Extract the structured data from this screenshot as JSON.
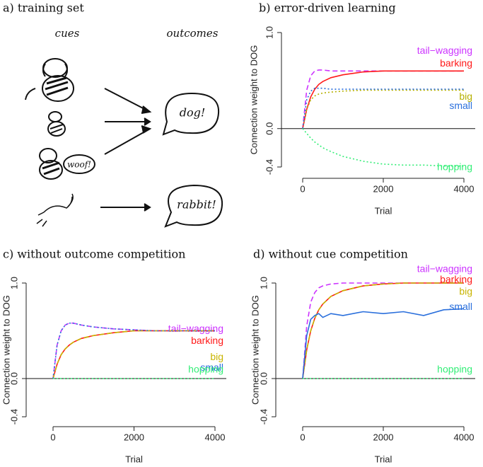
{
  "diagram": {
    "title": "a) training set",
    "cues_label": "cues",
    "outcomes_label": "outcomes",
    "bark_bubble": "woof!",
    "outcome_dog": "dog!",
    "outcome_rabbit": "rabbit!"
  },
  "chart_data": [
    {
      "type": "line",
      "title": "b) error-driven learning",
      "xlabel": "Trial",
      "ylabel": "Connection weight to DOG",
      "x": [
        0,
        100,
        200,
        300,
        400,
        500,
        700,
        1000,
        1500,
        2000,
        2500,
        3000,
        3500,
        4000
      ],
      "xlim": [
        0,
        4000
      ],
      "xticks": [
        0,
        2000,
        4000
      ],
      "ylim": [
        -0.4,
        1.0
      ],
      "yticks": [
        -0.4,
        {
          "value": 0,
          "label": "0.0"
        },
        {
          "value": 1,
          "label": "1.0"
        }
      ],
      "series": [
        {
          "name": "tail−wagging",
          "color": "#cc33ff",
          "line_style": "dashed",
          "values": [
            0,
            0.4,
            0.55,
            0.6,
            0.61,
            0.61,
            0.6,
            0.6,
            0.6,
            0.6,
            0.6,
            0.6,
            0.6,
            0.6
          ]
        },
        {
          "name": "barking",
          "color": "#ff1a1a",
          "line_style": "solid",
          "values": [
            0,
            0.2,
            0.33,
            0.41,
            0.46,
            0.49,
            0.53,
            0.56,
            0.59,
            0.6,
            0.6,
            0.6,
            0.6,
            0.6
          ]
        },
        {
          "name": "big",
          "color": "#b5b000",
          "line_style": "dotted",
          "values": [
            0,
            0.2,
            0.3,
            0.34,
            0.36,
            0.37,
            0.38,
            0.39,
            0.4,
            0.4,
            0.4,
            0.4,
            0.4,
            0.4
          ]
        },
        {
          "name": "small",
          "color": "#2a6fdc",
          "line_style": "dotted",
          "values": [
            0,
            0.3,
            0.39,
            0.42,
            0.42,
            0.42,
            0.41,
            0.41,
            0.41,
            0.41,
            0.41,
            0.41,
            0.41,
            0.41
          ]
        },
        {
          "name": "hopping",
          "color": "#33ee77",
          "line_style": "dotted",
          "values": [
            0,
            -0.05,
            -0.1,
            -0.14,
            -0.17,
            -0.2,
            -0.24,
            -0.29,
            -0.34,
            -0.37,
            -0.38,
            -0.38,
            -0.39,
            -0.39
          ]
        }
      ]
    },
    {
      "type": "line",
      "title": "c) without outcome competition",
      "xlabel": "Trial",
      "ylabel": "Connection weight to DOG",
      "x": [
        0,
        100,
        200,
        300,
        400,
        500,
        700,
        1000,
        1500,
        2000,
        2500,
        3000,
        3500,
        4000
      ],
      "xlim": [
        0,
        4000
      ],
      "xticks": [
        0,
        2000,
        4000
      ],
      "ylim": [
        -0.4,
        1.0
      ],
      "yticks": [
        -0.4,
        {
          "value": 0,
          "label": "0.0"
        },
        {
          "value": 1,
          "label": "1.0"
        }
      ],
      "series": [
        {
          "name": "tail−wagging",
          "color": "#cc33ff",
          "line_style": "dashed",
          "values": [
            0,
            0.35,
            0.5,
            0.56,
            0.58,
            0.58,
            0.56,
            0.54,
            0.52,
            0.51,
            0.5,
            0.5,
            0.5,
            0.5
          ]
        },
        {
          "name": "barking",
          "color": "#ff1a1a",
          "line_style": "solid",
          "values": [
            0,
            0.15,
            0.25,
            0.31,
            0.35,
            0.38,
            0.42,
            0.45,
            0.48,
            0.5,
            0.5,
            0.5,
            0.5,
            0.5
          ]
        },
        {
          "name": "big",
          "color": "#c8b400",
          "line_style": "dashed",
          "values": [
            0,
            0.15,
            0.25,
            0.31,
            0.35,
            0.38,
            0.42,
            0.45,
            0.48,
            0.5,
            0.5,
            0.5,
            0.5,
            0.5
          ]
        },
        {
          "name": "small",
          "color": "#2a6fdc",
          "line_style": "dotted",
          "values": [
            0,
            0.35,
            0.5,
            0.56,
            0.58,
            0.58,
            0.56,
            0.54,
            0.52,
            0.51,
            0.5,
            0.5,
            0.5,
            0.5
          ]
        },
        {
          "name": "hopping",
          "color": "#33ee77",
          "line_style": "dotted",
          "values": [
            0,
            0,
            0,
            0,
            0,
            0,
            0,
            0,
            0,
            0,
            0,
            0,
            0,
            0
          ]
        }
      ]
    },
    {
      "type": "line",
      "title": "d) without cue competition",
      "xlabel": "Trial",
      "ylabel": "Connection weight to DOG",
      "x": [
        0,
        100,
        200,
        300,
        400,
        500,
        700,
        1000,
        1500,
        2000,
        2500,
        3000,
        3500,
        4000
      ],
      "xlim": [
        0,
        4000
      ],
      "xticks": [
        0,
        2000,
        4000
      ],
      "ylim": [
        -0.4,
        1.0
      ],
      "yticks": [
        -0.4,
        {
          "value": 0,
          "label": "0.0"
        },
        {
          "value": 1,
          "label": "1.0"
        }
      ],
      "series": [
        {
          "name": "tail−wagging",
          "color": "#cc33ff",
          "line_style": "dashed",
          "values": [
            0,
            0.55,
            0.8,
            0.9,
            0.95,
            0.97,
            0.99,
            1,
            1,
            1,
            1,
            1,
            1,
            1
          ]
        },
        {
          "name": "barking",
          "color": "#ff1a1a",
          "line_style": "solid",
          "values": [
            0,
            0.3,
            0.5,
            0.63,
            0.72,
            0.78,
            0.86,
            0.92,
            0.97,
            0.99,
            1,
            1,
            1,
            1
          ]
        },
        {
          "name": "big",
          "color": "#c8b400",
          "line_style": "dashed",
          "values": [
            0,
            0.3,
            0.5,
            0.63,
            0.72,
            0.78,
            0.86,
            0.92,
            0.97,
            0.99,
            1,
            1,
            1,
            1
          ]
        },
        {
          "name": "small",
          "color": "#2a6fdc",
          "line_style": "solid",
          "values": [
            0,
            0.45,
            0.62,
            0.66,
            0.68,
            0.64,
            0.68,
            0.66,
            0.7,
            0.68,
            0.7,
            0.66,
            0.72,
            0.73
          ]
        },
        {
          "name": "hopping",
          "color": "#33ee77",
          "line_style": "dotted",
          "values": [
            0,
            0,
            0,
            0,
            0,
            0,
            0,
            0,
            0,
            0,
            0,
            0,
            0,
            0
          ]
        }
      ]
    }
  ]
}
